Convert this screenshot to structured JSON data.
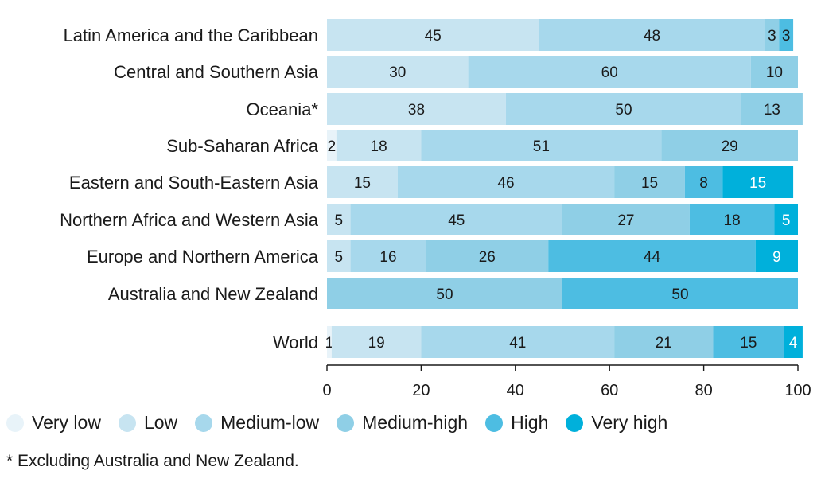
{
  "chart_data": {
    "type": "bar",
    "orientation": "horizontal",
    "stacked": true,
    "categories": [
      "Latin America and the Caribbean",
      "Central and Southern Asia",
      "Oceania*",
      "Sub-Saharan Africa",
      "Eastern and South-Eastern Asia",
      "Northern Africa and Western Asia",
      "Europe and Northern America",
      "Australia and New Zealand",
      "World"
    ],
    "series": [
      {
        "name": "Very low",
        "color": "#e8f3f9",
        "values": [
          0,
          0,
          0,
          2,
          0,
          0,
          0,
          0,
          1
        ]
      },
      {
        "name": "Low",
        "color": "#c7e4f1",
        "values": [
          45,
          30,
          38,
          18,
          15,
          5,
          5,
          0,
          19
        ]
      },
      {
        "name": "Medium-low",
        "color": "#a7d8ec",
        "values": [
          48,
          60,
          50,
          51,
          46,
          45,
          16,
          0,
          41
        ]
      },
      {
        "name": "Medium-high",
        "color": "#8fcfe6",
        "values": [
          3,
          10,
          13,
          29,
          15,
          27,
          26,
          50,
          21
        ]
      },
      {
        "name": "High",
        "color": "#4dbde2",
        "values": [
          3,
          0,
          0,
          0,
          8,
          18,
          44,
          50,
          15
        ]
      },
      {
        "name": "Very high",
        "color": "#00b0db",
        "values": [
          0,
          0,
          0,
          0,
          15,
          5,
          9,
          0,
          4
        ]
      }
    ],
    "xlim": [
      0,
      100
    ],
    "x_ticks": [
      0,
      20,
      40,
      60,
      80,
      100
    ],
    "legend_position": "bottom",
    "grid": false
  },
  "footnote": "* Excluding Australia and New Zealand."
}
